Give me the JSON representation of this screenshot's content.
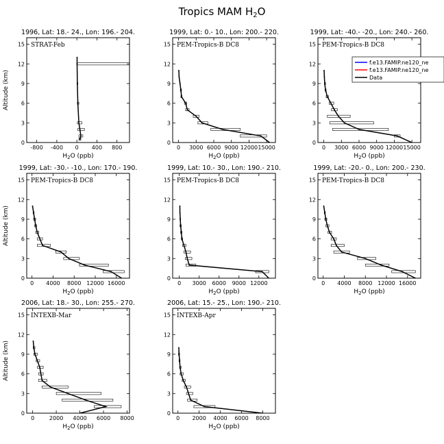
{
  "figure": {
    "title": "Tropics MAM H",
    "title_sub": "2",
    "title_tail": "O"
  },
  "legend": {
    "entries": [
      {
        "label": "f.e13.FAMIP.ne120_ne",
        "color": "#0000ff"
      },
      {
        "label": "f.e13.FAMIP.ne120_ne",
        "color": "#ff0000"
      },
      {
        "label": "Data",
        "color": "#000000"
      }
    ]
  },
  "chart_data": [
    {
      "type": "line",
      "title": "1996, Lat: 18.- 24., Lon: 196.- 204.",
      "label": "STRAT-Feb",
      "xlabel": "H2O (ppb)",
      "ylabel": "Altitude (km)",
      "xlim": [
        -1000,
        1050
      ],
      "ylim": [
        0,
        16
      ],
      "xticks": [
        -800,
        -400,
        0,
        400,
        800
      ],
      "yticks": [
        0,
        3,
        6,
        9,
        12,
        15
      ],
      "points": [
        {
          "y": 0.5,
          "x": 60,
          "lo": 40,
          "hi": 80
        },
        {
          "y": 1,
          "x": 80,
          "lo": 40,
          "hi": 120
        },
        {
          "y": 2,
          "x": 60,
          "lo": 20,
          "hi": 150
        },
        {
          "y": 3,
          "x": 40,
          "lo": 10,
          "hi": 100
        },
        {
          "y": 6,
          "x": 20,
          "lo": 10,
          "hi": 40
        },
        {
          "y": 9,
          "x": 10,
          "lo": 5,
          "hi": 20
        },
        {
          "y": 12,
          "x": 5,
          "lo": 0,
          "hi": 1050
        },
        {
          "y": 13,
          "x": 5,
          "lo": 5,
          "hi": 5
        }
      ]
    },
    {
      "type": "line",
      "title": "1999, Lat: 0.- 10., Lon: 200.- 220.",
      "label": "PEM-Tropics-B DC8",
      "xlabel": "H2O (ppb)",
      "ylabel": "Altitude (km)",
      "xlim": [
        -1000,
        16500
      ],
      "ylim": [
        0,
        16
      ],
      "xticks": [
        0,
        3000,
        6000,
        9000,
        12000,
        15000
      ],
      "yticks": [
        0,
        3,
        6,
        9,
        12,
        15
      ],
      "points": [
        {
          "y": 0,
          "x": 15500,
          "lo": 15500,
          "hi": 15500
        },
        {
          "y": 1,
          "x": 14000,
          "lo": 10500,
          "hi": 15000
        },
        {
          "y": 2,
          "x": 7500,
          "lo": 5500,
          "hi": 10500
        },
        {
          "y": 3,
          "x": 4000,
          "lo": 3300,
          "hi": 5000
        },
        {
          "y": 4,
          "x": 3000,
          "lo": 2500,
          "hi": 3500
        },
        {
          "y": 5,
          "x": 1500,
          "lo": 1200,
          "hi": 1800
        },
        {
          "y": 6,
          "x": 1200,
          "lo": 1000,
          "hi": 1400
        },
        {
          "y": 7,
          "x": 500,
          "lo": 400,
          "hi": 600
        },
        {
          "y": 8,
          "x": 400,
          "lo": 300,
          "hi": 500
        },
        {
          "y": 9,
          "x": 250,
          "lo": 200,
          "hi": 300
        },
        {
          "y": 10,
          "x": 100,
          "lo": 100,
          "hi": 100
        },
        {
          "y": 11,
          "x": 50,
          "lo": 50,
          "hi": 50
        }
      ]
    },
    {
      "type": "line",
      "title": "1999, Lat: -40.- -20., Lon: 240.- 260.",
      "label": "PEM-Tropics-B DC8",
      "xlabel": "H2O (ppb)",
      "ylabel": "Altitude (km)",
      "xlim": [
        -1000,
        16500
      ],
      "ylim": [
        0,
        16
      ],
      "xticks": [
        0,
        3000,
        6000,
        9000,
        12000,
        15000
      ],
      "yticks": [
        0,
        3,
        6,
        9,
        12,
        15
      ],
      "points": [
        {
          "y": 0,
          "x": 15000,
          "lo": 15000,
          "hi": 15000
        },
        {
          "y": 1,
          "x": 12500,
          "lo": 12000,
          "hi": 13000
        },
        {
          "y": 2,
          "x": 6000,
          "lo": 1500,
          "hi": 11000
        },
        {
          "y": 3,
          "x": 3500,
          "lo": 1000,
          "hi": 8500
        },
        {
          "y": 4,
          "x": 2500,
          "lo": 600,
          "hi": 4500
        },
        {
          "y": 5,
          "x": 1800,
          "lo": 1300,
          "hi": 2300
        },
        {
          "y": 6,
          "x": 1200,
          "lo": 900,
          "hi": 1700
        },
        {
          "y": 7,
          "x": 600,
          "lo": 400,
          "hi": 800
        },
        {
          "y": 8,
          "x": 300,
          "lo": 200,
          "hi": 400
        },
        {
          "y": 9,
          "x": 150,
          "lo": 100,
          "hi": 300
        },
        {
          "y": 10,
          "x": 100,
          "lo": 100,
          "hi": 100
        },
        {
          "y": 11,
          "x": 50,
          "lo": 50,
          "hi": 50
        }
      ]
    },
    {
      "type": "line",
      "title": "1999, Lat: -30.- -10., Lon: 170.- 190.",
      "label": "PEM-Tropics-B DC8",
      "xlabel": "H2O (ppb)",
      "ylabel": "Altitude (km)",
      "xlim": [
        -1000,
        18500
      ],
      "ylim": [
        0,
        16
      ],
      "xticks": [
        0,
        4000,
        8000,
        12000,
        16000
      ],
      "yticks": [
        0,
        3,
        6,
        9,
        12,
        15
      ],
      "points": [
        {
          "y": 0,
          "x": 17000,
          "lo": 17000,
          "hi": 17000
        },
        {
          "y": 1,
          "x": 15000,
          "lo": 13500,
          "hi": 17500
        },
        {
          "y": 2,
          "x": 10000,
          "lo": 9000,
          "hi": 14500
        },
        {
          "y": 3,
          "x": 7000,
          "lo": 6000,
          "hi": 9000
        },
        {
          "y": 4,
          "x": 5500,
          "lo": 4500,
          "hi": 6500
        },
        {
          "y": 5,
          "x": 2000,
          "lo": 1000,
          "hi": 3500
        },
        {
          "y": 6,
          "x": 1500,
          "lo": 1000,
          "hi": 2000
        },
        {
          "y": 7,
          "x": 1000,
          "lo": 700,
          "hi": 1300
        },
        {
          "y": 8,
          "x": 700,
          "lo": 500,
          "hi": 900
        },
        {
          "y": 9,
          "x": 500,
          "lo": 300,
          "hi": 700
        },
        {
          "y": 10,
          "x": 300,
          "lo": 200,
          "hi": 400
        },
        {
          "y": 11,
          "x": 100,
          "lo": 100,
          "hi": 100
        }
      ]
    },
    {
      "type": "line",
      "title": "1999, Lat: 10.- 30., Lon: 190.- 210.",
      "label": "PEM-Tropics-B DC8",
      "xlabel": "H2O (ppb)",
      "ylabel": "Altitude (km)",
      "xlim": [
        -1000,
        14500
      ],
      "ylim": [
        0,
        16
      ],
      "xticks": [
        0,
        3000,
        6000,
        9000,
        12000
      ],
      "yticks": [
        0,
        3,
        6,
        9,
        12,
        15
      ],
      "points": [
        {
          "y": 0,
          "x": 13500,
          "lo": 13500,
          "hi": 13500
        },
        {
          "y": 1,
          "x": 12500,
          "lo": 11500,
          "hi": 13500
        },
        {
          "y": 2,
          "x": 1500,
          "lo": 1000,
          "hi": 2500
        },
        {
          "y": 3,
          "x": 1200,
          "lo": 900,
          "hi": 1900
        },
        {
          "y": 4,
          "x": 1000,
          "lo": 700,
          "hi": 1700
        },
        {
          "y": 5,
          "x": 700,
          "lo": 500,
          "hi": 1000
        },
        {
          "y": 6,
          "x": 400,
          "lo": 300,
          "hi": 500
        },
        {
          "y": 7,
          "x": 300,
          "lo": 200,
          "hi": 400
        },
        {
          "y": 8,
          "x": 200,
          "lo": 100,
          "hi": 300
        },
        {
          "y": 9,
          "x": 150,
          "lo": 100,
          "hi": 200
        },
        {
          "y": 10,
          "x": 100,
          "lo": 100,
          "hi": 100
        },
        {
          "y": 11,
          "x": 80,
          "lo": 80,
          "hi": 80
        }
      ]
    },
    {
      "type": "line",
      "title": "1999, Lat: -20.- 0., Lon: 200.- 230.",
      "label": "PEM-Tropics-B DC8",
      "xlabel": "H2O (ppb)",
      "ylabel": "Altitude (km)",
      "xlim": [
        -1000,
        18500
      ],
      "ylim": [
        0,
        16
      ],
      "xticks": [
        0,
        4000,
        8000,
        12000,
        16000
      ],
      "yticks": [
        0,
        3,
        6,
        9,
        12,
        15
      ],
      "points": [
        {
          "y": 0,
          "x": 17500,
          "lo": 17500,
          "hi": 17500
        },
        {
          "y": 1,
          "x": 15000,
          "lo": 13000,
          "hi": 17500
        },
        {
          "y": 2,
          "x": 11000,
          "lo": 8000,
          "hi": 12500
        },
        {
          "y": 3,
          "x": 8000,
          "lo": 6500,
          "hi": 10000
        },
        {
          "y": 4,
          "x": 3500,
          "lo": 2000,
          "hi": 5000
        },
        {
          "y": 5,
          "x": 2500,
          "lo": 1500,
          "hi": 4000
        },
        {
          "y": 6,
          "x": 2000,
          "lo": 1500,
          "hi": 2500
        },
        {
          "y": 7,
          "x": 1200,
          "lo": 900,
          "hi": 1600
        },
        {
          "y": 8,
          "x": 800,
          "lo": 500,
          "hi": 1100
        },
        {
          "y": 9,
          "x": 500,
          "lo": 300,
          "hi": 700
        },
        {
          "y": 10,
          "x": 300,
          "lo": 200,
          "hi": 400
        },
        {
          "y": 11,
          "x": 100,
          "lo": 100,
          "hi": 100
        }
      ]
    },
    {
      "type": "line",
      "title": "2006, Lat: 18.- 30., Lon: 255.- 270.",
      "label": "INTEXB-Mar",
      "xlabel": "H2O (ppb)",
      "ylabel": "Altitude (km)",
      "xlim": [
        -500,
        8200
      ],
      "ylim": [
        0,
        16
      ],
      "xticks": [
        0,
        2000,
        4000,
        6000,
        8000
      ],
      "yticks": [
        0,
        3,
        6,
        9,
        12,
        15
      ],
      "points": [
        {
          "y": 0,
          "x": 4000,
          "lo": 4000,
          "hi": 4000
        },
        {
          "y": 1,
          "x": 6200,
          "lo": 5200,
          "hi": 7500
        },
        {
          "y": 2,
          "x": 4500,
          "lo": 2500,
          "hi": 6800
        },
        {
          "y": 3,
          "x": 3000,
          "lo": 2000,
          "hi": 5800
        },
        {
          "y": 4,
          "x": 1500,
          "lo": 800,
          "hi": 3000
        },
        {
          "y": 5,
          "x": 800,
          "lo": 500,
          "hi": 1200
        },
        {
          "y": 6,
          "x": 700,
          "lo": 500,
          "hi": 900
        },
        {
          "y": 7,
          "x": 600,
          "lo": 400,
          "hi": 900
        },
        {
          "y": 8,
          "x": 400,
          "lo": 300,
          "hi": 600
        },
        {
          "y": 9,
          "x": 200,
          "lo": 100,
          "hi": 400
        },
        {
          "y": 10,
          "x": 100,
          "lo": 50,
          "hi": 200
        },
        {
          "y": 11,
          "x": 50,
          "lo": 50,
          "hi": 50
        }
      ]
    },
    {
      "type": "line",
      "title": "2006, Lat: 15.- 25., Lon: 190.- 210.",
      "label": "INTEXB-Apr",
      "xlabel": "H2O (ppb)",
      "ylabel": "Altitude (km)",
      "xlim": [
        -500,
        9200
      ],
      "ylim": [
        0,
        16
      ],
      "xticks": [
        0,
        2000,
        4000,
        6000,
        8000
      ],
      "yticks": [
        0,
        3,
        6,
        9,
        12,
        15
      ],
      "points": [
        {
          "y": 0,
          "x": 8000,
          "lo": 8000,
          "hi": 8000
        },
        {
          "y": 1,
          "x": 2500,
          "lo": 1500,
          "hi": 3500
        },
        {
          "y": 2,
          "x": 1200,
          "lo": 900,
          "hi": 1800
        },
        {
          "y": 3,
          "x": 1000,
          "lo": 800,
          "hi": 1400
        },
        {
          "y": 4,
          "x": 800,
          "lo": 600,
          "hi": 1200
        },
        {
          "y": 5,
          "x": 500,
          "lo": 400,
          "hi": 700
        },
        {
          "y": 6,
          "x": 300,
          "lo": 200,
          "hi": 500
        },
        {
          "y": 7,
          "x": 200,
          "lo": 150,
          "hi": 300
        },
        {
          "y": 8,
          "x": 150,
          "lo": 100,
          "hi": 200
        },
        {
          "y": 9,
          "x": 100,
          "lo": 50,
          "hi": 150
        },
        {
          "y": 10,
          "x": 80,
          "lo": 80,
          "hi": 80
        }
      ]
    }
  ]
}
